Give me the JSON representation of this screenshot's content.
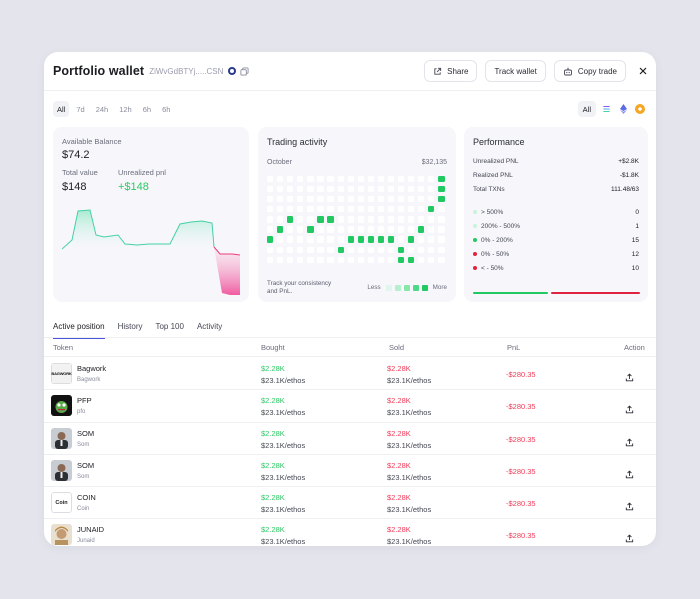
{
  "header": {
    "title": "Portfolio wallet",
    "address": "ZiWvGdBTYj.....CSN",
    "share_label": "Share",
    "track_label": "Track wallet",
    "copy_trade_label": "Copy trade"
  },
  "timeframes": [
    "All",
    "7d",
    "24h",
    "12h",
    "6h",
    "6h"
  ],
  "chain_filter": {
    "all_label": "All",
    "icons": [
      "solana-icon",
      "ethereum-icon",
      "bnb-icon"
    ]
  },
  "balance": {
    "available_label": "Available Balance",
    "available_value": "$74.2",
    "total_label": "Total value",
    "total_value": "$148",
    "unrealized_label": "Unrealized pnl",
    "unrealized_value": "+$148"
  },
  "trading_activity": {
    "title": "Trading activity",
    "month": "October",
    "amount": "$32,135",
    "footer": "Track your consistency and PnL.",
    "legend_less": "Less",
    "legend_more": "More",
    "legend_colors": [
      "#dff7ea",
      "#b6efcf",
      "#86e6ad",
      "#4fd88b",
      "#21c962"
    ]
  },
  "performance": {
    "title": "Performance",
    "stats": [
      {
        "label": "Unrealized PNL",
        "value": "+$2.8K"
      },
      {
        "label": "Realized PNL",
        "value": "-$1.8K"
      },
      {
        "label": "Total TXNs",
        "value": "111.48/63"
      }
    ],
    "buckets": [
      {
        "label": "> 500%",
        "value": "0",
        "color": "#c8f2da"
      },
      {
        "label": "200% - 500%",
        "value": "1",
        "color": "#c8f2da"
      },
      {
        "label": "0% - 200%",
        "value": "15",
        "color": "#21c962"
      },
      {
        "label": "0% - 50%",
        "value": "12",
        "color": "#e0243f"
      },
      {
        "label": "< - 50%",
        "value": "10",
        "color": "#e0243f"
      }
    ]
  },
  "tabs": [
    "Active position",
    "History",
    "Top 100",
    "Activity"
  ],
  "table": {
    "headers": {
      "token": "Token",
      "bought": "Bought",
      "sold": "Sold",
      "pnl": "PnL",
      "action": "Action"
    },
    "rows": [
      {
        "name": "Bagwork",
        "sub": "Bagwork",
        "avatar": "bagwork",
        "bought": "$2.28K",
        "bought_sub": "$23.1K/ethos",
        "sold": "$2.28K",
        "sold_sub": "$23.1K/ethos",
        "pnl": "-$280.35"
      },
      {
        "name": "PFP",
        "sub": "pfo",
        "avatar": "pfp",
        "bought": "$2.28K",
        "bought_sub": "$23.1K/ethos",
        "sold": "$2.28K",
        "sold_sub": "$23.1K/ethos",
        "pnl": "-$280.35"
      },
      {
        "name": "SOM",
        "sub": "Som",
        "avatar": "som",
        "bought": "$2.28K",
        "bought_sub": "$23.1K/ethos",
        "sold": "$2.28K",
        "sold_sub": "$23.1K/ethos",
        "pnl": "-$280.35"
      },
      {
        "name": "SOM",
        "sub": "Som",
        "avatar": "som",
        "bought": "$2.28K",
        "bought_sub": "$23.1K/ethos",
        "sold": "$2.28K",
        "sold_sub": "$23.1K/ethos",
        "pnl": "-$280.35"
      },
      {
        "name": "COIN",
        "sub": "Coin",
        "avatar": "coin",
        "bought": "$2.28K",
        "bought_sub": "$23.1K/ethos",
        "sold": "$2.28K",
        "sold_sub": "$23.1K/ethos",
        "pnl": "-$280.35"
      },
      {
        "name": "JUNAID",
        "sub": "Junaid",
        "avatar": "junaid",
        "bought": "$2.28K",
        "bought_sub": "$23.1K/ethos",
        "sold": "$2.28K",
        "sold_sub": "$23.1K/ethos",
        "pnl": "-$280.35"
      }
    ]
  },
  "colors": {
    "accent": "#4b57d8",
    "positive": "#2dc964",
    "negative": "#ee3b57",
    "panel": "#f6f6fb"
  }
}
